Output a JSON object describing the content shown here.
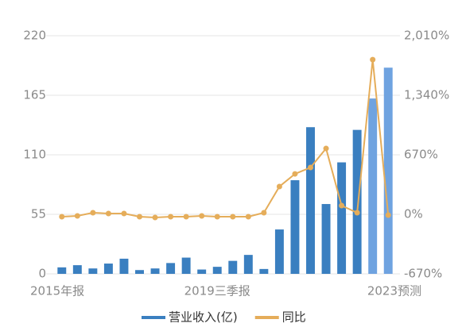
{
  "chart_data": {
    "type": "bar_line",
    "categories": [
      "2015年报",
      null,
      null,
      null,
      null,
      null,
      null,
      null,
      null,
      null,
      "2019三季报",
      null,
      null,
      null,
      null,
      null,
      null,
      null,
      null,
      null,
      null,
      "2023预测"
    ],
    "series": [
      {
        "name": "营业收入(亿)",
        "type": "bar",
        "color": "#3a7fc0",
        "colors": [
          "#3a7fc0",
          "#3a7fc0",
          "#3a7fc0",
          "#3a7fc0",
          "#3a7fc0",
          "#3a7fc0",
          "#3a7fc0",
          "#3a7fc0",
          "#3a7fc0",
          "#3a7fc0",
          "#3a7fc0",
          "#3a7fc0",
          "#3a7fc0",
          "#3a7fc0",
          "#3a7fc0",
          "#3a7fc0",
          "#3a7fc0",
          "#3a7fc0",
          "#3a7fc0",
          "#3a7fc0",
          "#6fa3e0",
          "#6fa3e0"
        ],
        "values": [
          6,
          8,
          5,
          9.5,
          14,
          3.5,
          5,
          10,
          15,
          4,
          6.5,
          12,
          17.5,
          4.5,
          41,
          86.5,
          135.5,
          64.5,
          103,
          133,
          162,
          190.5
        ]
      },
      {
        "name": "同比",
        "type": "line",
        "axis": "y2",
        "color": "#e5ad5a",
        "values": [
          -27,
          -18,
          18,
          9,
          9,
          -27,
          -36,
          -27,
          -27,
          -18,
          -27,
          -27,
          -27,
          18,
          313,
          455,
          527,
          741,
          98,
          18,
          1741,
          -9
        ]
      }
    ],
    "ylim": [
      0,
      220
    ],
    "yticks": [
      0,
      55,
      110,
      165,
      220
    ],
    "y2lim": [
      -670,
      2010
    ],
    "y2ticks": [
      {
        "value": -670,
        "label": "-670%"
      },
      {
        "value": 0,
        "label": "0%"
      },
      {
        "value": 670,
        "label": "670%"
      },
      {
        "value": 1340,
        "label": "1,340%"
      },
      {
        "value": 2010,
        "label": "2,010%"
      }
    ],
    "grid": true,
    "legend": "bottom"
  }
}
